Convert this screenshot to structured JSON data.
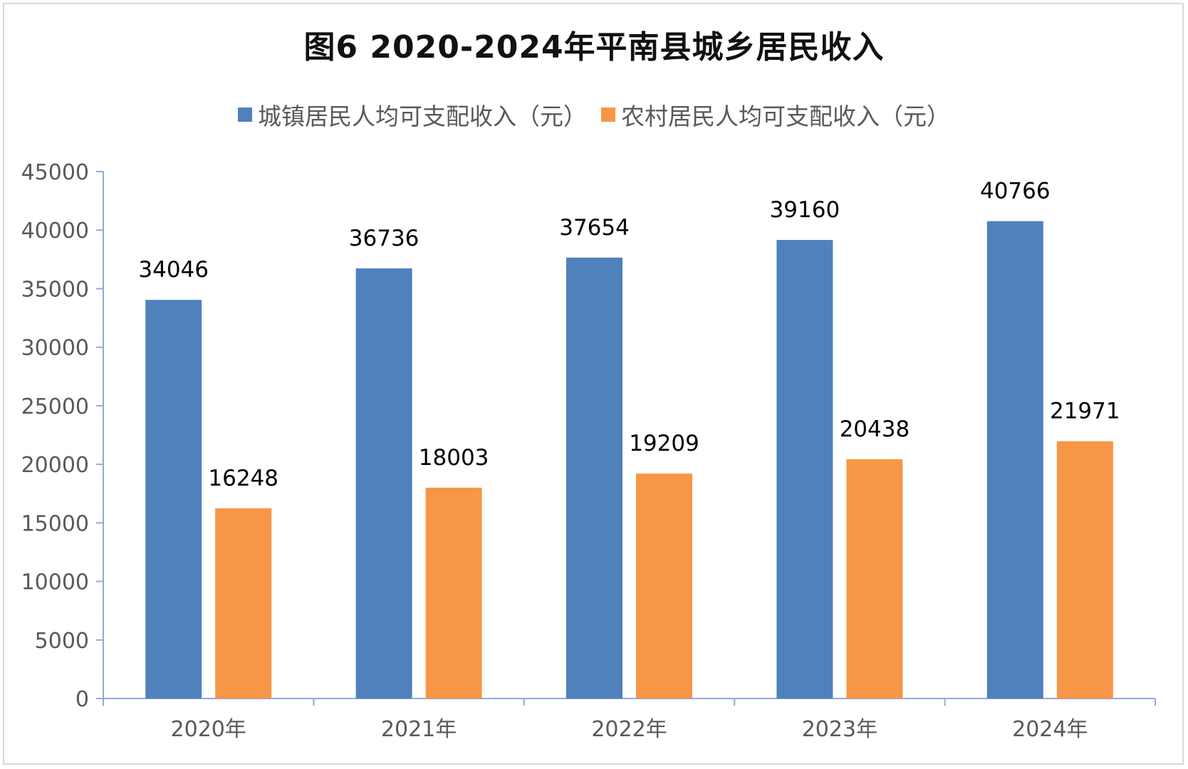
{
  "chart_data": {
    "type": "bar",
    "title": "图6  2020-2024年平南县城乡居民收入",
    "categories": [
      "2020年",
      "2021年",
      "2022年",
      "2023年",
      "2024年"
    ],
    "series": [
      {
        "name": "城镇居民人均可支配收入（元）",
        "color": "#4f81bd",
        "values": [
          34046,
          36736,
          37654,
          39160,
          40766
        ]
      },
      {
        "name": "农村居民人均可支配收入（元）",
        "color": "#f79646",
        "values": [
          16248,
          18003,
          19209,
          20438,
          21971
        ]
      }
    ],
    "ylim": [
      0,
      45000
    ],
    "yticks": [
      "0",
      "5000",
      "10000",
      "15000",
      "20000",
      "25000",
      "30000",
      "35000",
      "40000",
      "45000"
    ],
    "xlabel": "",
    "ylabel": "",
    "legend": "top",
    "grid": false
  }
}
